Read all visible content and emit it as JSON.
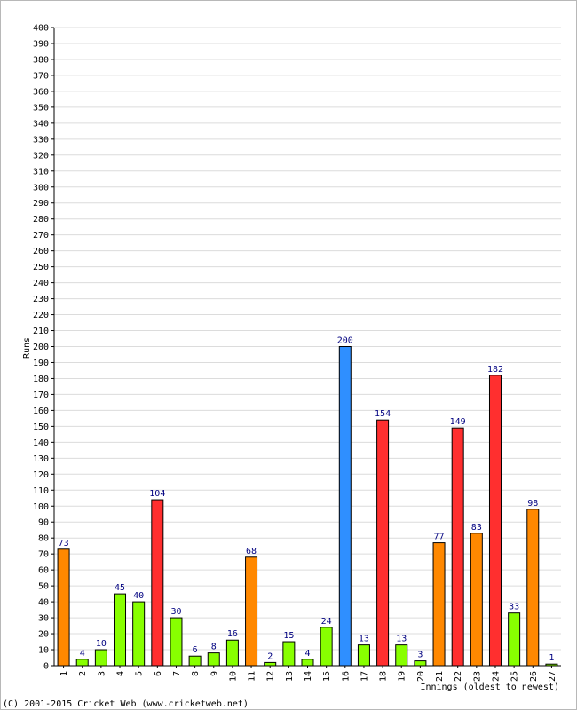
{
  "chart_data": {
    "type": "bar",
    "title": "",
    "xlabel": "Innings (oldest to newest)",
    "ylabel": "Runs",
    "ylim": [
      0,
      400
    ],
    "ytick_step": 10,
    "grid": true,
    "categories": [
      "1",
      "2",
      "3",
      "4",
      "5",
      "6",
      "7",
      "8",
      "9",
      "10",
      "11",
      "12",
      "13",
      "14",
      "15",
      "16",
      "17",
      "18",
      "19",
      "20",
      "21",
      "22",
      "23",
      "24",
      "25",
      "26",
      "27"
    ],
    "values": [
      73,
      4,
      10,
      45,
      40,
      104,
      30,
      6,
      8,
      16,
      68,
      2,
      15,
      4,
      24,
      200,
      13,
      154,
      13,
      3,
      77,
      149,
      83,
      182,
      33,
      98,
      1
    ],
    "bar_colors": [
      "#ff8800",
      "#88ff00",
      "#88ff00",
      "#88ff00",
      "#88ff00",
      "#ff2f2f",
      "#88ff00",
      "#88ff00",
      "#88ff00",
      "#88ff00",
      "#ff8800",
      "#88ff00",
      "#88ff00",
      "#88ff00",
      "#88ff00",
      "#2f8fff",
      "#88ff00",
      "#ff2f2f",
      "#88ff00",
      "#88ff00",
      "#ff8800",
      "#ff2f2f",
      "#ff8800",
      "#ff2f2f",
      "#88ff00",
      "#ff8800",
      "#88ff00"
    ],
    "value_label_color": "#000080",
    "grid_color": "#dcdcdc"
  },
  "footer": {
    "copyright": "(C) 2001-2015 Cricket Web (www.cricketweb.net)"
  }
}
